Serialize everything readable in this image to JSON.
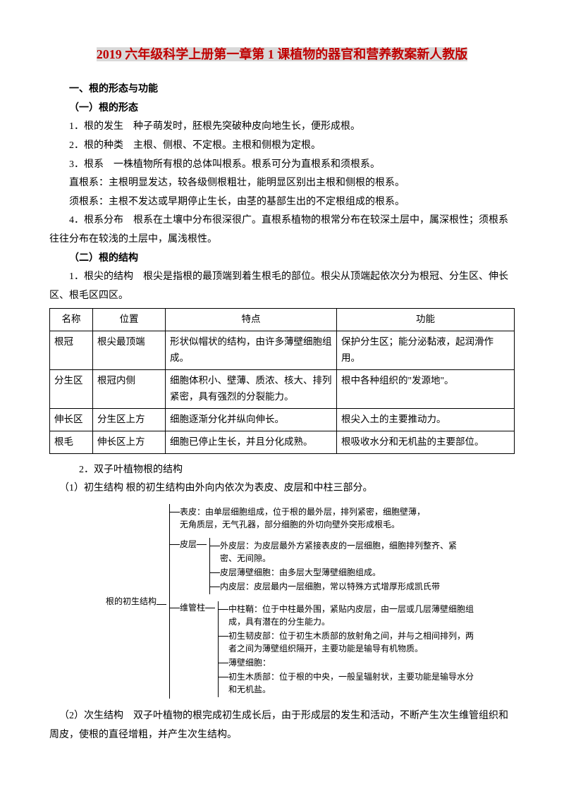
{
  "title_parts": {
    "p1": "2019",
    "p2": " 六年级科学上册第一章第 ",
    "p3": "1",
    "p4": " 课植物的器官和营养教案新人教版"
  },
  "h1": "一、根的形态与功能",
  "h1_1": "（一）根的形态",
  "p1": "1．根的发生　种子萌发时，胚根先突破种皮向地生长，便形成根。",
  "p2": "2．根的种类　主根、侧根、不定根。主根和侧根为定根。",
  "p3": "3．根系　一株植物所有根的总体叫根系。根系可分为直根系和须根系。",
  "p4": "直根系：主根明显发达，较各级侧根粗壮，能明显区别出主根和侧根的根系。",
  "p5": "须根系：主根不发达或早期停止生长，由茎的基部生出的不定根组成的根系。",
  "p6": "4．根系分布　根系在土壤中分布很深很广。直根系植物的根常分布在较深土层中，属深根性；须根系往往分布在较浅的土层中，属浅根性。",
  "h1_2": "（二）根的结构",
  "p7": "1．根尖的结构　根尖是指根的最顶端到着生根毛的部位。根尖从顶端起依次分为根冠、分生区、伸长区、根毛区四区。",
  "table": {
    "head": [
      "名称",
      "位置",
      "特点",
      "功能"
    ],
    "rows": [
      [
        "根冠",
        "根尖最顶端",
        "形状似帽状的结构，由许多薄壁细胞组成。",
        "保护分生区；能分泌黏液，起润滑作用。"
      ],
      [
        "分生区",
        "根冠内侧",
        "细胞体积小、壁薄、质浓、核大、排列紧密，具有强烈的分裂能力。",
        "根中各种组织的\"发源地\"。"
      ],
      [
        "伸长区",
        "分生区上方",
        "细胞逐渐分化并纵向伸长。",
        "根尖入土的主要推动力。"
      ],
      [
        "根毛",
        "伸长区上方",
        "细胞已停止生长，并且分化成熟。",
        "根吸收水分和无机盐的主要部位。"
      ]
    ]
  },
  "p8": "2．双子叶植物根的结构",
  "p9": "（1）初生结构 根的初生结构由外向内依次为表皮、皮层和中柱三部分。",
  "tree": {
    "root": "根的初生结构",
    "l1": [
      {
        "label": "表皮",
        "text": "：由单层细胞组成，位于根的最外层，排列紧密，细胞壁薄，无角质层，无气孔器，部分细胞的外切向壁外突形成根毛。"
      },
      {
        "label": "皮层",
        "children": [
          {
            "label": "外皮层",
            "text": "：为皮层最外方紧接表皮的一层细胞，细胞排列整齐、紧密、无间隙。"
          },
          {
            "label": "皮层薄壁细胞",
            "text": "：由多层大型薄壁细胞组成。"
          },
          {
            "label": "内皮层",
            "text": "：皮层最内一层细胞，常以特殊方式增厚形成凯氏带"
          }
        ]
      },
      {
        "label": "维管柱",
        "children": [
          {
            "label": "中柱鞘",
            "text": "：位于中柱最外围，紧贴内皮层，由一层或几层薄壁细胞组成，具有潜在的分生能力。"
          },
          {
            "label": "初生韧皮部",
            "text": "：位于初生木质部的放射角之间，并与之相间排列，两者之间为薄壁组织隔开，主要功能是输导有机物质。"
          },
          {
            "label": "薄壁细胞",
            "text": "："
          },
          {
            "label": "初生木质部",
            "text": "：位于根的中央，一般呈辐射状，主要功能是输导水分和无机盐。"
          }
        ]
      }
    ]
  },
  "p10": "（2）次生结构　双子叶植物的根完成初生成长后，由于形成层的发生和活动，不断产生次生维管组织和周皮，使根的直径增粗，并产生次生结构。"
}
